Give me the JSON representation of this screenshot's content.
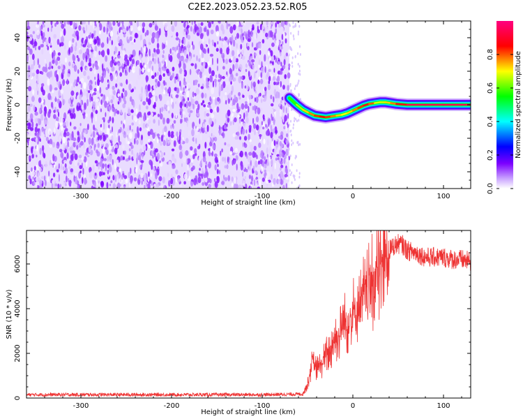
{
  "title": "C2E2.2023.052.23.52.R05",
  "chart_data": [
    {
      "type": "heatmap",
      "name": "spectrogram",
      "xlabel": "Height of straight line (km)",
      "ylabel": "Frequency (Hz)",
      "xlim": [
        -360,
        130
      ],
      "ylim": [
        -50,
        50
      ],
      "xticks": [
        -300,
        -200,
        -100,
        0,
        100
      ],
      "xtick_labels": [
        "-300",
        "-200",
        "-100",
        "0",
        "100"
      ],
      "yticks": [
        -40,
        -20,
        0,
        20,
        40
      ],
      "ytick_labels": [
        "-40",
        "-20",
        "0",
        "20",
        "40"
      ],
      "noise_region_x": [
        -360,
        -70
      ],
      "noise_amplitude_range": [
        0.0,
        0.15
      ],
      "signal_ridge": {
        "x": [
          -70,
          -62,
          -55,
          -48,
          -42,
          -36,
          -30,
          -24,
          -18,
          -12,
          -6,
          0,
          6,
          12,
          18,
          24,
          30,
          36,
          42,
          48,
          60,
          80,
          100,
          120,
          130
        ],
        "y": [
          4,
          0,
          -3,
          -5,
          -6.5,
          -7,
          -7.5,
          -7,
          -6.5,
          -6,
          -5,
          -3.5,
          -2,
          -0.5,
          0.5,
          1,
          1.5,
          1.5,
          1,
          0.5,
          0,
          0,
          0,
          0,
          0
        ],
        "amplitude": [
          0.55,
          0.6,
          0.7,
          0.75,
          0.8,
          0.85,
          0.85,
          0.8,
          0.75,
          0.7,
          0.7,
          0.75,
          0.8,
          0.85,
          0.9,
          0.7,
          0.65,
          0.7,
          0.75,
          0.8,
          0.95,
          0.95,
          0.95,
          0.95,
          0.95
        ]
      },
      "colorbar": {
        "label": "Normalized spectral amplitude",
        "range": [
          0.0,
          1.0
        ],
        "ticks": [
          0.0,
          0.2,
          0.4,
          0.6,
          0.8
        ],
        "tick_labels": [
          "0.0",
          "0.2",
          "0.4",
          "0.6",
          "0.8"
        ],
        "colors": [
          "#ffffff",
          "#7c00ff",
          "#0000ff",
          "#00ffff",
          "#00ff00",
          "#ffff00",
          "#ff0000",
          "#ff0080"
        ]
      }
    },
    {
      "type": "line",
      "name": "snr",
      "xlabel": "Height of straight line (km)",
      "ylabel": "SNR (10 * v/v)",
      "xlim": [
        -360,
        130
      ],
      "ylim": [
        0,
        7500
      ],
      "xticks": [
        -300,
        -200,
        -100,
        0,
        100
      ],
      "xtick_labels": [
        "-300",
        "-200",
        "-100",
        "0",
        "100"
      ],
      "yticks": [
        0,
        2000,
        4000,
        6000
      ],
      "ytick_labels": [
        "0",
        "2000",
        "4000",
        "6000"
      ],
      "color": "#ee3333",
      "series": [
        {
          "name": "SNR",
          "x": [
            -360,
            -300,
            -200,
            -100,
            -55,
            -50,
            -45,
            -40,
            -35,
            -30,
            -25,
            -20,
            -15,
            -10,
            -5,
            0,
            5,
            10,
            15,
            20,
            25,
            30,
            35,
            40,
            45,
            50,
            55,
            60,
            70,
            80,
            90,
            100,
            110,
            120,
            130
          ],
          "y": [
            150,
            150,
            150,
            150,
            180,
            600,
            1600,
            1300,
            1500,
            1900,
            2100,
            2700,
            2800,
            3300,
            3400,
            3800,
            4000,
            4400,
            4600,
            5000,
            5300,
            5800,
            6300,
            6600,
            6800,
            6900,
            6850,
            6600,
            6500,
            6300,
            6300,
            6300,
            6200,
            6200,
            6100
          ]
        }
      ]
    }
  ]
}
